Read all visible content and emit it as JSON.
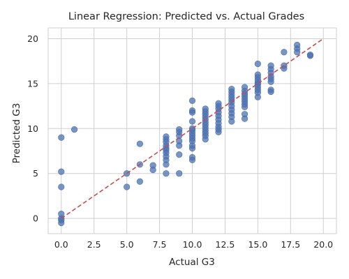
{
  "chart_data": {
    "type": "scatter",
    "title": "Linear Regression: Predicted vs. Actual Grades",
    "xlabel": "Actual G3",
    "ylabel": "Predicted G3",
    "xlim": [
      -1,
      21
    ],
    "ylim": [
      -1.7,
      21.2
    ],
    "xticks": [
      "0.0",
      "2.5",
      "5.0",
      "7.5",
      "10.0",
      "12.5",
      "15.0",
      "17.5",
      "20.0"
    ],
    "yticks": [
      "0",
      "5",
      "10",
      "15",
      "20"
    ],
    "grid": true,
    "point_color": "#4c72b0",
    "reference_line": {
      "from": [
        0,
        0
      ],
      "to": [
        20,
        20
      ],
      "color": "#c44e52",
      "style": "dashed"
    },
    "series": [
      {
        "points": [
          [
            0,
            9.0
          ],
          [
            0,
            5.2
          ],
          [
            0,
            3.5
          ],
          [
            0,
            0.5
          ],
          [
            0,
            0.0
          ],
          [
            0,
            -0.2
          ],
          [
            0,
            -0.5
          ],
          [
            1,
            9.9
          ],
          [
            5,
            5.0
          ],
          [
            5,
            3.5
          ],
          [
            6,
            8.3
          ],
          [
            6,
            6.0
          ],
          [
            6,
            4.1
          ],
          [
            7,
            5.9
          ],
          [
            7,
            5.4
          ],
          [
            8,
            9.1
          ],
          [
            8,
            8.8
          ],
          [
            8,
            8.5
          ],
          [
            8,
            8.1
          ],
          [
            8,
            7.8
          ],
          [
            8,
            7.6
          ],
          [
            8,
            7.3
          ],
          [
            8,
            6.9
          ],
          [
            8,
            6.5
          ],
          [
            8,
            6.0
          ],
          [
            8,
            5.0
          ],
          [
            9,
            9.9
          ],
          [
            9,
            9.6
          ],
          [
            9,
            9.2
          ],
          [
            9,
            8.6
          ],
          [
            9,
            8.1
          ],
          [
            9,
            7.1
          ],
          [
            9,
            5.0
          ],
          [
            10,
            13.1
          ],
          [
            10,
            12.0
          ],
          [
            10,
            11.8
          ],
          [
            10,
            10.8
          ],
          [
            10,
            10.0
          ],
          [
            10,
            9.8
          ],
          [
            10,
            9.5
          ],
          [
            10,
            9.2
          ],
          [
            10,
            8.9
          ],
          [
            10,
            8.6
          ],
          [
            10,
            8.1
          ],
          [
            10,
            7.8
          ],
          [
            10,
            6.8
          ],
          [
            10,
            6.5
          ],
          [
            11,
            12.2
          ],
          [
            11,
            11.9
          ],
          [
            11,
            11.6
          ],
          [
            11,
            11.3
          ],
          [
            11,
            11.0
          ],
          [
            11,
            10.7
          ],
          [
            11,
            10.4
          ],
          [
            11,
            10.1
          ],
          [
            11,
            9.8
          ],
          [
            11,
            9.5
          ],
          [
            11,
            9.2
          ],
          [
            11,
            8.8
          ],
          [
            12,
            12.8
          ],
          [
            12,
            12.5
          ],
          [
            12,
            12.2
          ],
          [
            12,
            11.8
          ],
          [
            12,
            11.4
          ],
          [
            12,
            11.0
          ],
          [
            12,
            10.6
          ],
          [
            12,
            10.2
          ],
          [
            12,
            9.9
          ],
          [
            12,
            9.6
          ],
          [
            13,
            14.4
          ],
          [
            13,
            14.1
          ],
          [
            13,
            13.8
          ],
          [
            13,
            13.5
          ],
          [
            13,
            13.2
          ],
          [
            13,
            12.9
          ],
          [
            13,
            12.5
          ],
          [
            13,
            12.1
          ],
          [
            13,
            11.7
          ],
          [
            13,
            11.3
          ],
          [
            13,
            10.8
          ],
          [
            14,
            14.6
          ],
          [
            14,
            14.2
          ],
          [
            14,
            13.9
          ],
          [
            14,
            13.6
          ],
          [
            14,
            13.3
          ],
          [
            14,
            13.0
          ],
          [
            14,
            12.7
          ],
          [
            14,
            12.4
          ],
          [
            14,
            11.6
          ],
          [
            14,
            11.1
          ],
          [
            15,
            17.2
          ],
          [
            15,
            16.0
          ],
          [
            15,
            15.7
          ],
          [
            15,
            15.4
          ],
          [
            15,
            15.1
          ],
          [
            15,
            14.9
          ],
          [
            15,
            14.6
          ],
          [
            15,
            14.3
          ],
          [
            15,
            14.0
          ],
          [
            15,
            13.5
          ],
          [
            16,
            17.0
          ],
          [
            16,
            16.6
          ],
          [
            16,
            16.2
          ],
          [
            16,
            15.8
          ],
          [
            16,
            15.5
          ],
          [
            16,
            15.2
          ],
          [
            16,
            14.3
          ],
          [
            16,
            14.1
          ],
          [
            17,
            18.5
          ],
          [
            17,
            17.0
          ],
          [
            17,
            16.7
          ],
          [
            18,
            19.3
          ],
          [
            18,
            18.9
          ],
          [
            18,
            18.5
          ],
          [
            19,
            18.2
          ],
          [
            19,
            18.1
          ]
        ]
      }
    ]
  }
}
